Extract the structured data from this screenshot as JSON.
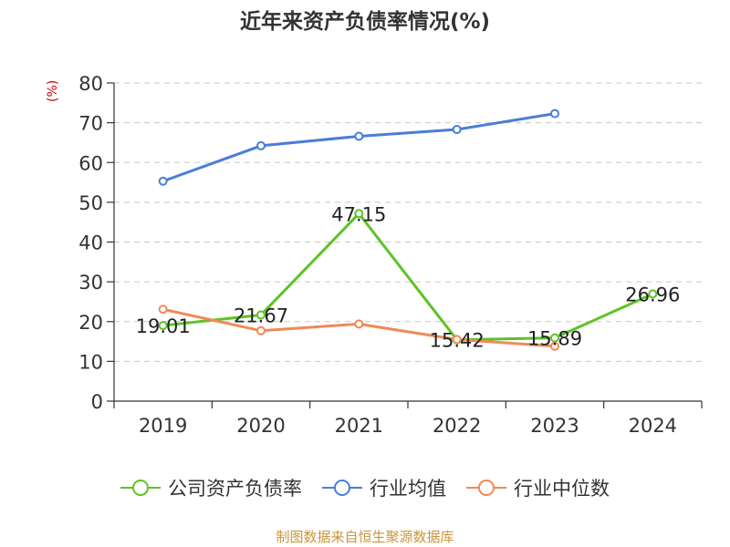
{
  "title": "近年来资产负债率情况(%)",
  "unit_label": "(%)",
  "source": "制图数据来自恒生聚源数据库",
  "chart_data": {
    "type": "line",
    "title": "近年来资产负债率情况(%)",
    "ylabel": "(%)",
    "xlabel": "",
    "ylim": [
      0,
      80
    ],
    "yticks": [
      0,
      10,
      20,
      30,
      40,
      50,
      60,
      70,
      80
    ],
    "categories": [
      "2019",
      "2020",
      "2021",
      "2022",
      "2023",
      "2024"
    ],
    "grid": true,
    "legend_position": "bottom",
    "series": [
      {
        "name": "公司资产负债率",
        "color": "#5dc327",
        "values": [
          19.01,
          21.67,
          47.15,
          15.42,
          15.89,
          26.96
        ],
        "labels": [
          "19.01",
          "21.67",
          "47.15",
          "15.42",
          "15.89",
          "26.96"
        ]
      },
      {
        "name": "行业均值",
        "color": "#4a7ed8",
        "values": [
          55.3,
          64.2,
          66.6,
          68.3,
          72.3,
          null
        ]
      },
      {
        "name": "行业中位数",
        "color": "#f08a55",
        "values": [
          23.1,
          17.7,
          19.4,
          15.5,
          13.8,
          null
        ]
      }
    ]
  }
}
